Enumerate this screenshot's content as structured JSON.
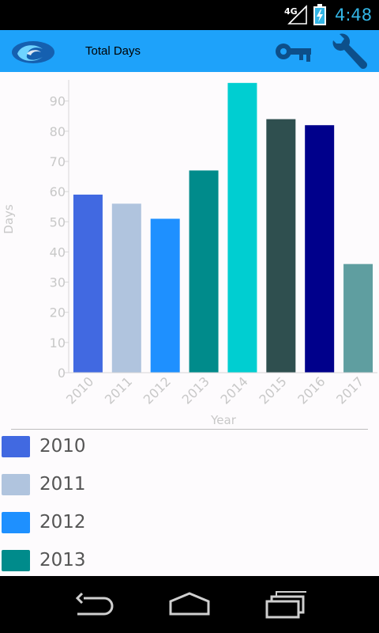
{
  "status_bar": {
    "network_label": "4G",
    "time": "4:48"
  },
  "app_bar": {
    "title": "Total Days",
    "logo_icon": "wave-logo-icon",
    "actions": [
      {
        "name": "key-icon"
      },
      {
        "name": "wrench-icon"
      }
    ],
    "background_color": "#1ea2fa"
  },
  "chart_data": {
    "type": "bar",
    "categories": [
      "2010",
      "2011",
      "2012",
      "2013",
      "2014",
      "2015",
      "2016",
      "2017"
    ],
    "values": [
      59,
      56,
      51,
      67,
      96,
      84,
      82,
      36
    ],
    "colors": [
      "#4169e1",
      "#b0c4de",
      "#1e90ff",
      "#008b8b",
      "#00ced1",
      "#2f4f4f",
      "#00008b",
      "#5f9ea0"
    ],
    "title": "",
    "xlabel": "Year",
    "ylabel": "Days",
    "ylim": [
      0,
      97
    ],
    "yticks": [
      0,
      10,
      20,
      30,
      40,
      50,
      60,
      70,
      80,
      90
    ],
    "grid": false,
    "legend_position": "bottom"
  },
  "legend": {
    "items": [
      {
        "label": "2010",
        "color": "#4169e1"
      },
      {
        "label": "2011",
        "color": "#b0c4de"
      },
      {
        "label": "2012",
        "color": "#1e90ff"
      },
      {
        "label": "2013",
        "color": "#008b8b"
      }
    ]
  },
  "nav_bar": {
    "buttons": [
      {
        "name": "back-icon"
      },
      {
        "name": "home-icon"
      },
      {
        "name": "recent-apps-icon"
      }
    ]
  }
}
